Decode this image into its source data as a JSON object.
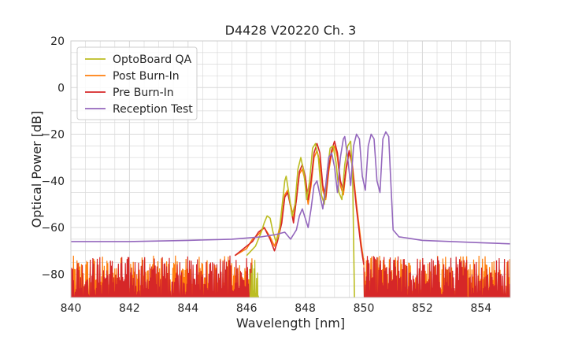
{
  "chart_data": {
    "type": "line",
    "title": "D4428 V20220 Ch. 3",
    "xlabel": "Wavelength [nm]",
    "ylabel": "Optical Power [dB]",
    "xlim": [
      840,
      855
    ],
    "ylim": [
      -90,
      20
    ],
    "x_ticks": [
      "840",
      "842",
      "844",
      "846",
      "848",
      "850",
      "852",
      "854"
    ],
    "x_tick_values": [
      840,
      842,
      844,
      846,
      848,
      850,
      852,
      854
    ],
    "y_ticks": [
      "20",
      "0",
      "−20",
      "−40",
      "−60",
      "−80"
    ],
    "y_tick_values": [
      20,
      0,
      -20,
      -40,
      -60,
      -80
    ],
    "grid": true,
    "legend_position": "top-left",
    "noise_floor_note_free": true,
    "series": [
      {
        "name": "OptoBoard QA",
        "color": "#bcbd22",
        "points": [
          [
            846.0,
            -72
          ],
          [
            846.3,
            -68
          ],
          [
            846.5,
            -62
          ],
          [
            846.6,
            -58
          ],
          [
            846.7,
            -55
          ],
          [
            846.8,
            -56
          ],
          [
            846.9,
            -62
          ],
          [
            847.0,
            -66
          ],
          [
            847.1,
            -63
          ],
          [
            847.2,
            -52
          ],
          [
            847.3,
            -40
          ],
          [
            847.35,
            -38
          ],
          [
            847.45,
            -46
          ],
          [
            847.55,
            -55
          ],
          [
            847.65,
            -50
          ],
          [
            847.75,
            -35
          ],
          [
            847.85,
            -30
          ],
          [
            847.95,
            -36
          ],
          [
            848.05,
            -48
          ],
          [
            848.15,
            -40
          ],
          [
            848.25,
            -26
          ],
          [
            848.35,
            -24
          ],
          [
            848.45,
            -30
          ],
          [
            848.55,
            -46
          ],
          [
            848.65,
            -50
          ],
          [
            848.75,
            -36
          ],
          [
            848.85,
            -26
          ],
          [
            848.95,
            -25
          ],
          [
            849.05,
            -32
          ],
          [
            849.15,
            -45
          ],
          [
            849.25,
            -48
          ],
          [
            849.35,
            -33
          ],
          [
            849.45,
            -25
          ],
          [
            849.55,
            -23
          ],
          [
            849.62,
            -40
          ],
          [
            849.68,
            -90
          ]
        ],
        "noise_range": [
          846.1,
          849.7
        ]
      },
      {
        "name": "Post Burn-In",
        "color": "#ff7f0e",
        "points": [
          [
            845.6,
            -72
          ],
          [
            846.0,
            -69
          ],
          [
            846.2,
            -65
          ],
          [
            846.4,
            -63
          ],
          [
            846.6,
            -60
          ],
          [
            846.8,
            -64
          ],
          [
            846.95,
            -68
          ],
          [
            847.05,
            -64
          ],
          [
            847.2,
            -56
          ],
          [
            847.3,
            -46
          ],
          [
            847.4,
            -44
          ],
          [
            847.5,
            -50
          ],
          [
            847.6,
            -56
          ],
          [
            847.7,
            -48
          ],
          [
            847.8,
            -37
          ],
          [
            847.9,
            -35
          ],
          [
            848.0,
            -40
          ],
          [
            848.1,
            -50
          ],
          [
            848.2,
            -42
          ],
          [
            848.3,
            -30
          ],
          [
            848.4,
            -27
          ],
          [
            848.5,
            -32
          ],
          [
            848.6,
            -44
          ],
          [
            848.7,
            -48
          ],
          [
            848.8,
            -36
          ],
          [
            848.9,
            -28
          ],
          [
            849.0,
            -25
          ],
          [
            849.1,
            -30
          ],
          [
            849.2,
            -42
          ],
          [
            849.3,
            -46
          ],
          [
            849.4,
            -35
          ],
          [
            849.5,
            -28
          ],
          [
            849.6,
            -32
          ],
          [
            849.75,
            -50
          ],
          [
            849.9,
            -66
          ],
          [
            850.0,
            -75
          ]
        ],
        "noise_range_left": [
          840.0,
          846.2
        ],
        "noise_range_right": [
          850.0,
          855.0
        ]
      },
      {
        "name": "Pre Burn-In",
        "color": "#d62728",
        "points": [
          [
            845.6,
            -72
          ],
          [
            846.0,
            -68
          ],
          [
            846.2,
            -66
          ],
          [
            846.4,
            -62
          ],
          [
            846.6,
            -60
          ],
          [
            846.8,
            -65
          ],
          [
            846.95,
            -70
          ],
          [
            847.05,
            -66
          ],
          [
            847.2,
            -58
          ],
          [
            847.3,
            -47
          ],
          [
            847.4,
            -45
          ],
          [
            847.5,
            -51
          ],
          [
            847.6,
            -58
          ],
          [
            847.7,
            -48
          ],
          [
            847.8,
            -36
          ],
          [
            847.9,
            -33
          ],
          [
            848.0,
            -38
          ],
          [
            848.1,
            -48
          ],
          [
            848.2,
            -40
          ],
          [
            848.3,
            -28
          ],
          [
            848.4,
            -24
          ],
          [
            848.5,
            -28
          ],
          [
            848.6,
            -42
          ],
          [
            848.7,
            -47
          ],
          [
            848.8,
            -34
          ],
          [
            848.9,
            -27
          ],
          [
            849.0,
            -23
          ],
          [
            849.1,
            -28
          ],
          [
            849.2,
            -40
          ],
          [
            849.3,
            -44
          ],
          [
            849.4,
            -34
          ],
          [
            849.5,
            -27
          ],
          [
            849.6,
            -33
          ],
          [
            849.75,
            -52
          ],
          [
            849.9,
            -68
          ],
          [
            850.0,
            -76
          ]
        ],
        "noise_range_left": [
          840.0,
          846.2
        ],
        "noise_range_right": [
          850.0,
          855.0
        ]
      },
      {
        "name": "Reception Test",
        "color": "#9467bd",
        "points": [
          [
            840.0,
            -66
          ],
          [
            842.0,
            -66
          ],
          [
            844.0,
            -65.5
          ],
          [
            845.5,
            -65
          ],
          [
            846.5,
            -64
          ],
          [
            847.0,
            -63
          ],
          [
            847.3,
            -62
          ],
          [
            847.5,
            -65
          ],
          [
            847.7,
            -61
          ],
          [
            847.8,
            -55
          ],
          [
            847.9,
            -52
          ],
          [
            848.0,
            -56
          ],
          [
            848.1,
            -60
          ],
          [
            848.2,
            -52
          ],
          [
            848.3,
            -42
          ],
          [
            848.4,
            -40
          ],
          [
            848.5,
            -46
          ],
          [
            848.6,
            -52
          ],
          [
            848.7,
            -42
          ],
          [
            848.8,
            -30
          ],
          [
            848.9,
            -28
          ],
          [
            849.0,
            -34
          ],
          [
            849.1,
            -45
          ],
          [
            849.2,
            -30
          ],
          [
            849.3,
            -22
          ],
          [
            849.35,
            -21
          ],
          [
            849.45,
            -30
          ],
          [
            849.55,
            -42
          ],
          [
            849.65,
            -25
          ],
          [
            849.75,
            -20
          ],
          [
            849.85,
            -22
          ],
          [
            849.95,
            -38
          ],
          [
            850.05,
            -44
          ],
          [
            850.15,
            -25
          ],
          [
            850.25,
            -20
          ],
          [
            850.35,
            -22
          ],
          [
            850.45,
            -40
          ],
          [
            850.55,
            -45
          ],
          [
            850.65,
            -22
          ],
          [
            850.75,
            -19
          ],
          [
            850.85,
            -21
          ],
          [
            850.9,
            -35
          ],
          [
            851.0,
            -61
          ],
          [
            851.2,
            -64
          ],
          [
            852.0,
            -65.5
          ],
          [
            854.0,
            -66.5
          ],
          [
            855.0,
            -67
          ]
        ]
      }
    ]
  }
}
